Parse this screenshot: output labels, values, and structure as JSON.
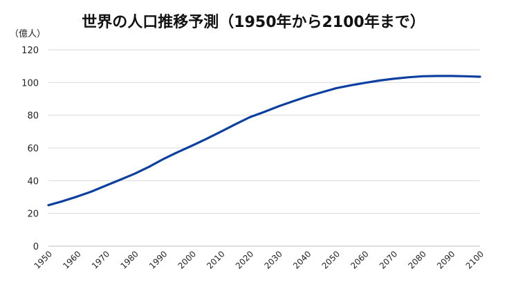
{
  "chart_data": {
    "type": "line",
    "title": "世界の人口推移予測（1950年から2100年まで）",
    "ylabel": "（億人）",
    "xlabel": "",
    "xlim": [
      1950,
      2100
    ],
    "ylim": [
      0,
      120
    ],
    "yticks": [
      0,
      20,
      40,
      60,
      80,
      100,
      120
    ],
    "xticks": [
      "1950",
      "1960",
      "1970",
      "1980",
      "1990",
      "2000",
      "2010",
      "2020",
      "2030",
      "2040",
      "2050",
      "2060",
      "2070",
      "2080",
      "2090",
      "2100"
    ],
    "grid": true,
    "legend": "none",
    "line_color": "#0b3fa0",
    "series": [
      {
        "x": [
          1950,
          1955,
          1960,
          1965,
          1970,
          1975,
          1980,
          1985,
          1990,
          1995,
          2000,
          2005,
          2010,
          2015,
          2020,
          2025,
          2030,
          2035,
          2040,
          2045,
          2050,
          2055,
          2060,
          2065,
          2070,
          2075,
          2080,
          2085,
          2090,
          2095,
          2100
        ],
        "values": [
          25.0,
          27.5,
          30.3,
          33.4,
          37.0,
          40.6,
          44.3,
          48.5,
          53.3,
          57.5,
          61.5,
          65.6,
          70.0,
          74.5,
          78.8,
          82.0,
          85.5,
          88.5,
          91.5,
          94.0,
          96.5,
          98.3,
          99.8,
          101.2,
          102.3,
          103.2,
          103.8,
          104.0,
          104.0,
          103.8,
          103.5
        ]
      }
    ]
  }
}
